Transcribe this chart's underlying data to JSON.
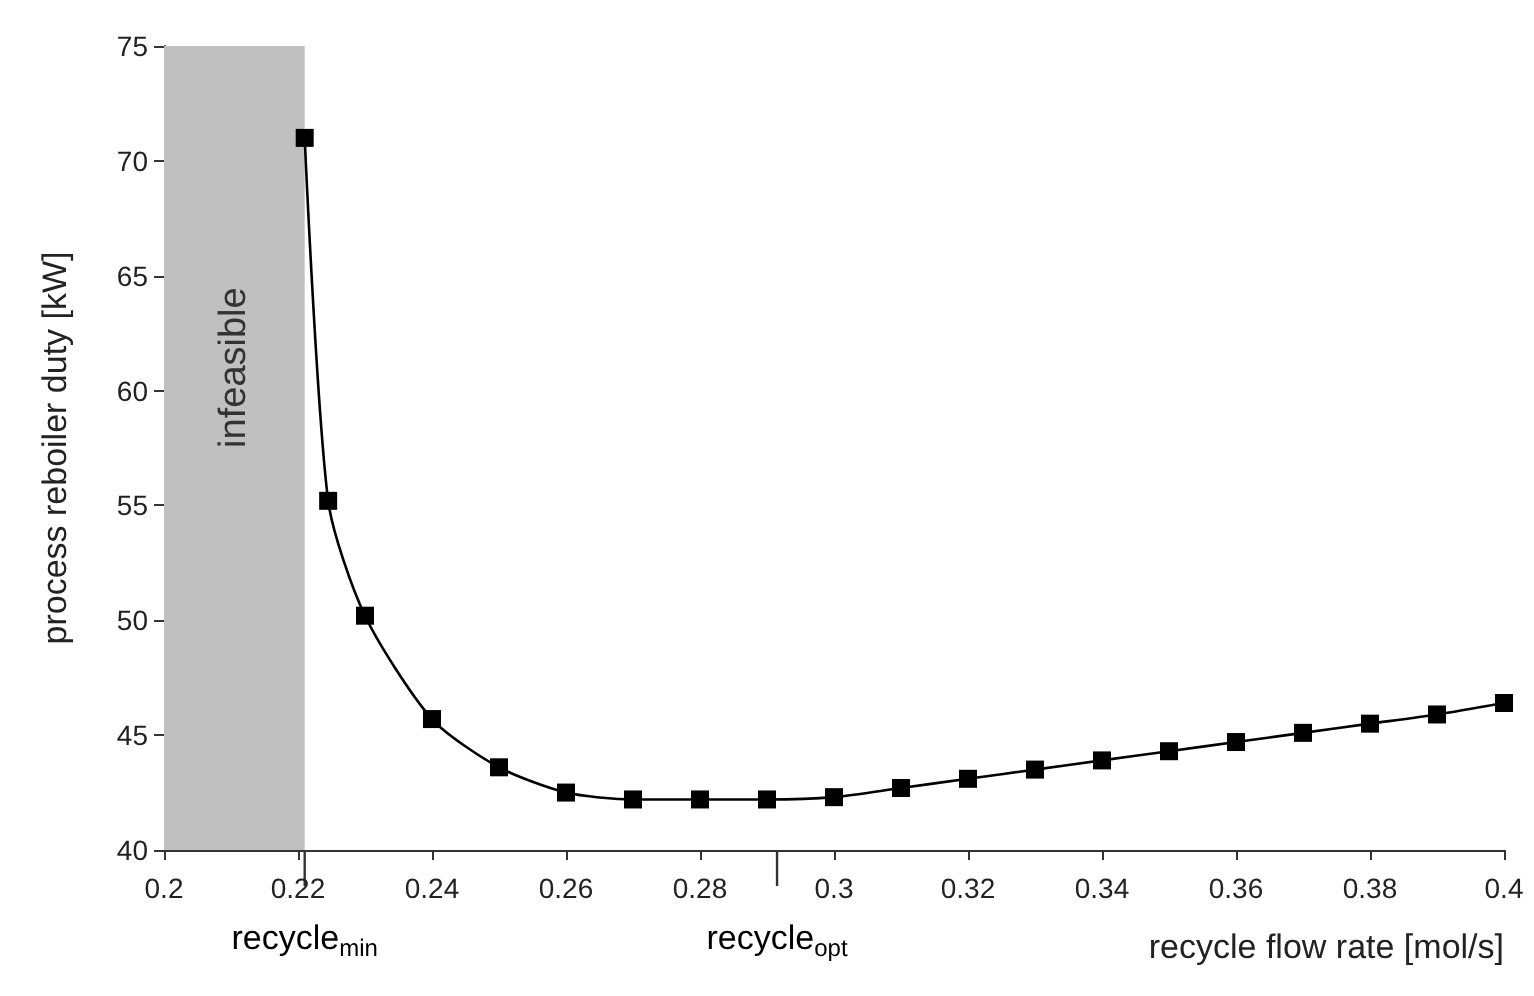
{
  "chart_data": {
    "type": "line",
    "ylabel": "process reboiler duty [kW]",
    "xlabel": "recycle flow rate [mol/s]",
    "x": [
      0.221,
      0.2245,
      0.23,
      0.24,
      0.25,
      0.26,
      0.27,
      0.28,
      0.29,
      0.3,
      0.31,
      0.32,
      0.33,
      0.34,
      0.35,
      0.36,
      0.37,
      0.38,
      0.39,
      0.4
    ],
    "series": [
      {
        "color": "#000000",
        "values": [
          71,
          55.2,
          50.2,
          45.7,
          43.6,
          42.5,
          42.2,
          42.2,
          42.2,
          42.3,
          42.7,
          43.1,
          43.5,
          43.9,
          44.3,
          44.7,
          45.1,
          45.5,
          45.9,
          46.4
        ]
      }
    ],
    "xlim": [
      0.2,
      0.4
    ],
    "xticks": [
      0.2,
      0.22,
      0.24,
      0.26,
      0.28,
      0.3,
      0.32,
      0.34,
      0.36,
      0.38,
      0.4
    ],
    "ylim": [
      40,
      75
    ],
    "yticks": [
      40,
      45,
      50,
      55,
      60,
      65,
      70,
      75
    ],
    "bands": [
      {
        "axis": "x",
        "from": 0.2,
        "to": 0.221,
        "label": "infeasible",
        "color": "#c0c0c0"
      }
    ],
    "ref_lines": [
      {
        "axis": "x",
        "value": 0.221,
        "label": "recycle$_{min}$"
      },
      {
        "axis": "x",
        "value": 0.2915,
        "label": "recycle$_{opt}$"
      }
    ],
    "marker": "square",
    "line_style": "solid",
    "grid": false
  }
}
